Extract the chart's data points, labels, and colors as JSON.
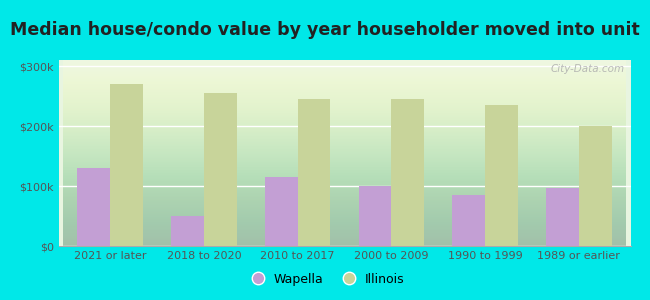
{
  "title": "Median house/condo value by year householder moved into unit",
  "categories": [
    "2021 or later",
    "2018 to 2020",
    "2010 to 2017",
    "2000 to 2009",
    "1990 to 1999",
    "1989 or earlier"
  ],
  "wapella_values": [
    130000,
    50000,
    115000,
    100000,
    85000,
    97000
  ],
  "illinois_values": [
    270000,
    255000,
    245000,
    245000,
    235000,
    200000
  ],
  "wapella_color": "#c39fd4",
  "illinois_color": "#c8d49a",
  "background_color": "#00e8e8",
  "plot_bg_color": "#e8f5e0",
  "yticks": [
    0,
    100000,
    200000,
    300000
  ],
  "ytick_labels": [
    "$0",
    "$100k",
    "$200k",
    "$300k"
  ],
  "ylim": [
    0,
    310000
  ],
  "bar_width": 0.35,
  "title_fontsize": 12.5,
  "tick_fontsize": 8,
  "legend_fontsize": 9,
  "watermark": "City-Data.com"
}
